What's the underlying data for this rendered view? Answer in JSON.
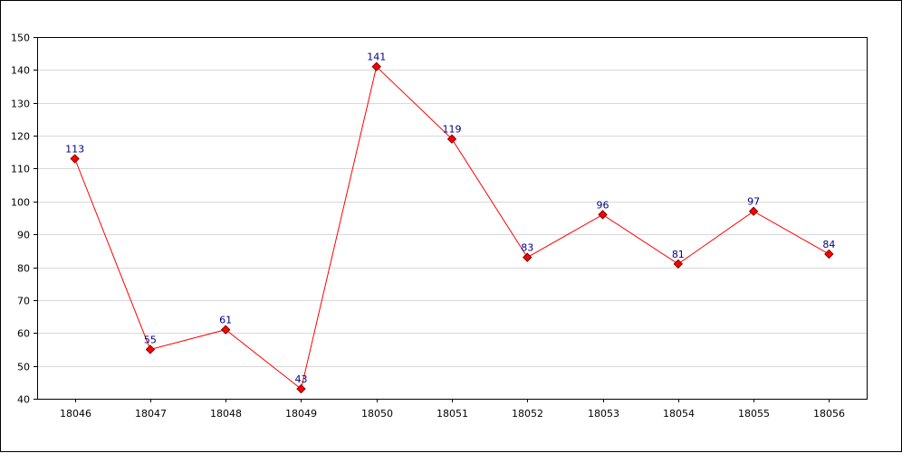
{
  "chart_data": {
    "type": "line",
    "title": "",
    "xlabel": "",
    "ylabel": "",
    "categories": [
      "18046",
      "18047",
      "18048",
      "18049",
      "18050",
      "18051",
      "18052",
      "18053",
      "18054",
      "18055",
      "18056"
    ],
    "series": [
      {
        "values": [
          113,
          55,
          61,
          43,
          141,
          119,
          83,
          96,
          81,
          97,
          84
        ]
      }
    ],
    "data_labels": [
      "113",
      "55",
      "61",
      "43",
      "141",
      "119",
      "83",
      "96",
      "81",
      "97",
      "84"
    ],
    "ylim": [
      40,
      150
    ],
    "yticks": [
      40,
      50,
      60,
      70,
      80,
      90,
      100,
      110,
      120,
      130,
      140,
      150
    ],
    "grid": "horizontal",
    "legend": "none",
    "colors": {
      "line": "#ff0000",
      "marker_fill": "#ff0000",
      "marker_stroke": "#800000",
      "data_label": "#000080",
      "grid": "#d9d9d9",
      "axis": "#000000"
    }
  }
}
